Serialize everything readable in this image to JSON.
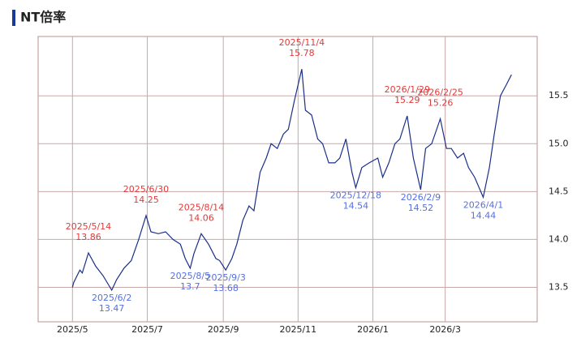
{
  "chart_data": {
    "type": "line",
    "title": "NT倍率",
    "color": "#1a2f8a",
    "x": [
      "2025/5/1",
      "2025/5/2",
      "2025/5/7",
      "2025/5/9",
      "2025/5/14",
      "2025/5/20",
      "2025/5/26",
      "2025/6/2",
      "2025/6/6",
      "2025/6/12",
      "2025/6/18",
      "2025/6/24",
      "2025/6/30",
      "2025/7/4",
      "2025/7/10",
      "2025/7/16",
      "2025/7/22",
      "2025/7/28",
      "2025/8/1",
      "2025/8/5",
      "2025/8/8",
      "2025/8/14",
      "2025/8/20",
      "2025/8/26",
      "2025/8/29",
      "2025/9/3",
      "2025/9/8",
      "2025/9/12",
      "2025/9/17",
      "2025/9/22",
      "2025/9/26",
      "2025/10/1",
      "2025/10/6",
      "2025/10/10",
      "2025/10/15",
      "2025/10/20",
      "2025/10/24",
      "2025/10/29",
      "2025/11/4",
      "2025/11/7",
      "2025/11/12",
      "2025/11/17",
      "2025/11/21",
      "2025/11/26",
      "2025/12/1",
      "2025/12/5",
      "2025/12/10",
      "2025/12/15",
      "2025/12/18",
      "2025/12/23",
      "2025/12/29",
      "2026/1/5",
      "2026/1/9",
      "2026/1/14",
      "2026/1/19",
      "2026/1/23",
      "2026/1/29",
      "2026/2/3",
      "2026/2/9",
      "2026/2/13",
      "2026/2/18",
      "2026/2/25",
      "2026/3/2",
      "2026/3/6",
      "2026/3/11",
      "2026/3/16",
      "2026/3/20",
      "2026/3/25",
      "2026/4/1",
      "2026/4/6",
      "2026/4/10",
      "2026/4/15",
      "2026/4/20",
      "2026/4/24"
    ],
    "values": [
      13.5,
      13.55,
      13.68,
      13.65,
      13.86,
      13.72,
      13.62,
      13.47,
      13.58,
      13.7,
      13.78,
      14.0,
      14.25,
      14.08,
      14.06,
      14.08,
      14.0,
      13.95,
      13.8,
      13.7,
      13.85,
      14.06,
      13.95,
      13.8,
      13.78,
      13.68,
      13.8,
      13.95,
      14.2,
      14.35,
      14.3,
      14.7,
      14.85,
      15.0,
      14.95,
      15.1,
      15.15,
      15.45,
      15.78,
      15.35,
      15.3,
      15.05,
      15.0,
      14.8,
      14.8,
      14.85,
      15.05,
      14.7,
      14.54,
      14.75,
      14.8,
      14.85,
      14.65,
      14.8,
      15.0,
      15.05,
      15.29,
      14.85,
      14.52,
      14.95,
      15.0,
      15.26,
      14.95,
      14.95,
      14.85,
      14.9,
      14.75,
      14.65,
      14.44,
      14.75,
      15.1,
      15.5,
      15.62,
      15.72
    ],
    "xlim": [
      "2025/4/3",
      "2026/5/15"
    ],
    "xticks": [
      {
        "value": "2025/5/1",
        "label": "2025/5"
      },
      {
        "value": "2025/7/1",
        "label": "2025/7"
      },
      {
        "value": "2025/9/1",
        "label": "2025/9"
      },
      {
        "value": "2025/11/1",
        "label": "2025/11"
      },
      {
        "value": "2026/1/1",
        "label": "2026/1"
      },
      {
        "value": "2026/3/1",
        "label": "2026/3"
      }
    ],
    "ylim": [
      13.14,
      16.12
    ],
    "yticks": [
      {
        "value": 13.5,
        "label": "13.5"
      },
      {
        "value": 14,
        "label": "14.0"
      },
      {
        "value": 14.5,
        "label": "14.5"
      },
      {
        "value": 15,
        "label": "15.0"
      },
      {
        "value": 15.5,
        "label": "15.5"
      }
    ],
    "grid": true,
    "annotations": [
      {
        "x": "2025/5/14",
        "value": 13.86,
        "color": "#e03a3a",
        "position": "above"
      },
      {
        "x": "2025/6/2",
        "value": 13.47,
        "color": "#5570e0",
        "position": "below"
      },
      {
        "x": "2025/6/30",
        "value": 14.25,
        "color": "#e03a3a",
        "position": "above"
      },
      {
        "x": "2025/8/5",
        "value": 13.7,
        "color": "#5570e0",
        "position": "below"
      },
      {
        "x": "2025/8/14",
        "value": 14.06,
        "color": "#e03a3a",
        "position": "above"
      },
      {
        "x": "2025/9/3",
        "value": 13.68,
        "color": "#5570e0",
        "position": "below"
      },
      {
        "x": "2025/11/4",
        "value": 15.78,
        "color": "#e03a3a",
        "position": "above"
      },
      {
        "x": "2025/12/18",
        "value": 14.54,
        "color": "#5570e0",
        "position": "below"
      },
      {
        "x": "2026/1/29",
        "value": 15.29,
        "color": "#e03a3a",
        "position": "above"
      },
      {
        "x": "2026/2/9",
        "value": 14.52,
        "color": "#5570e0",
        "position": "below"
      },
      {
        "x": "2026/2/25",
        "value": 15.26,
        "color": "#e03a3a",
        "position": "above"
      },
      {
        "x": "2026/4/1",
        "value": 14.44,
        "color": "#5570e0",
        "position": "below"
      }
    ]
  }
}
